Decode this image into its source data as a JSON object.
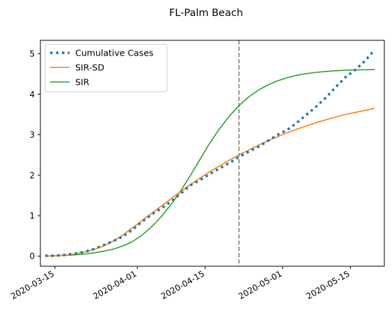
{
  "chart_data": {
    "type": "line",
    "title": "FL-Palm Beach",
    "xlabel": "",
    "ylabel": "",
    "x_range_days": [
      -3,
      68
    ],
    "ylim": [
      -0.25,
      5.33
    ],
    "x_origin_date": "2020-03-15",
    "x_ticks": [
      {
        "day": 0,
        "label": "2020-03-15"
      },
      {
        "day": 17,
        "label": "2020-04-01"
      },
      {
        "day": 31,
        "label": "2020-04-15"
      },
      {
        "day": 47,
        "label": "2020-05-01"
      },
      {
        "day": 61,
        "label": "2020-05-15"
      }
    ],
    "y_ticks": [
      {
        "value": 0,
        "label": "0"
      },
      {
        "value": 1,
        "label": "1"
      },
      {
        "value": 2,
        "label": "2"
      },
      {
        "value": 3,
        "label": "3"
      },
      {
        "value": 4,
        "label": "4"
      },
      {
        "value": 5,
        "label": "5"
      }
    ],
    "vline": {
      "day": 38,
      "style": "dashed",
      "color": "#7f7f7f"
    },
    "series": [
      {
        "name": "Cumulative Cases",
        "style": "dotted",
        "color": "#1f77b4",
        "points": [
          [
            -2,
            0.01
          ],
          [
            0,
            0.01
          ],
          [
            2,
            0.03
          ],
          [
            4,
            0.06
          ],
          [
            6,
            0.1
          ],
          [
            8,
            0.17
          ],
          [
            10,
            0.27
          ],
          [
            12,
            0.37
          ],
          [
            14,
            0.48
          ],
          [
            16,
            0.65
          ],
          [
            18,
            0.85
          ],
          [
            20,
            1.03
          ],
          [
            22,
            1.18
          ],
          [
            24,
            1.35
          ],
          [
            26,
            1.55
          ],
          [
            28,
            1.75
          ],
          [
            30,
            1.88
          ],
          [
            32,
            2.03
          ],
          [
            34,
            2.17
          ],
          [
            36,
            2.3
          ],
          [
            38,
            2.45
          ],
          [
            40,
            2.58
          ],
          [
            42,
            2.7
          ],
          [
            44,
            2.85
          ],
          [
            46,
            3.0
          ],
          [
            48,
            3.12
          ],
          [
            50,
            3.3
          ],
          [
            52,
            3.5
          ],
          [
            54,
            3.7
          ],
          [
            56,
            3.92
          ],
          [
            58,
            4.18
          ],
          [
            60,
            4.42
          ],
          [
            62,
            4.6
          ],
          [
            64,
            4.82
          ],
          [
            66,
            5.1
          ]
        ]
      },
      {
        "name": "SIR-SD",
        "style": "solid",
        "color": "#ff7f0e",
        "points": [
          [
            -2,
            0.0
          ],
          [
            0,
            0.01
          ],
          [
            2,
            0.02
          ],
          [
            4,
            0.05
          ],
          [
            6,
            0.1
          ],
          [
            8,
            0.16
          ],
          [
            10,
            0.25
          ],
          [
            12,
            0.37
          ],
          [
            14,
            0.52
          ],
          [
            16,
            0.7
          ],
          [
            18,
            0.88
          ],
          [
            20,
            1.06
          ],
          [
            22,
            1.24
          ],
          [
            24,
            1.42
          ],
          [
            26,
            1.6
          ],
          [
            28,
            1.77
          ],
          [
            30,
            1.93
          ],
          [
            32,
            2.09
          ],
          [
            34,
            2.23
          ],
          [
            36,
            2.37
          ],
          [
            38,
            2.5
          ],
          [
            40,
            2.62
          ],
          [
            42,
            2.74
          ],
          [
            44,
            2.85
          ],
          [
            46,
            2.95
          ],
          [
            48,
            3.05
          ],
          [
            50,
            3.14
          ],
          [
            52,
            3.22
          ],
          [
            54,
            3.3
          ],
          [
            56,
            3.37
          ],
          [
            58,
            3.44
          ],
          [
            60,
            3.5
          ],
          [
            62,
            3.55
          ],
          [
            64,
            3.6
          ],
          [
            66,
            3.65
          ]
        ]
      },
      {
        "name": "SIR",
        "style": "solid",
        "color": "#2ca02c",
        "points": [
          [
            -2,
            0.0
          ],
          [
            0,
            0.01
          ],
          [
            2,
            0.02
          ],
          [
            4,
            0.03
          ],
          [
            6,
            0.05
          ],
          [
            8,
            0.08
          ],
          [
            10,
            0.12
          ],
          [
            12,
            0.17
          ],
          [
            14,
            0.25
          ],
          [
            16,
            0.36
          ],
          [
            18,
            0.52
          ],
          [
            20,
            0.73
          ],
          [
            22,
            0.98
          ],
          [
            24,
            1.28
          ],
          [
            26,
            1.62
          ],
          [
            28,
            2.0
          ],
          [
            30,
            2.4
          ],
          [
            32,
            2.8
          ],
          [
            34,
            3.15
          ],
          [
            36,
            3.46
          ],
          [
            38,
            3.72
          ],
          [
            40,
            3.93
          ],
          [
            42,
            4.1
          ],
          [
            44,
            4.23
          ],
          [
            46,
            4.33
          ],
          [
            48,
            4.41
          ],
          [
            50,
            4.47
          ],
          [
            52,
            4.51
          ],
          [
            54,
            4.54
          ],
          [
            56,
            4.56
          ],
          [
            58,
            4.58
          ],
          [
            60,
            4.59
          ],
          [
            62,
            4.6
          ],
          [
            64,
            4.6
          ],
          [
            66,
            4.61
          ]
        ]
      }
    ],
    "legend": {
      "placement": "top-left",
      "entries": [
        "Cumulative Cases",
        "SIR-SD",
        "SIR"
      ]
    }
  }
}
